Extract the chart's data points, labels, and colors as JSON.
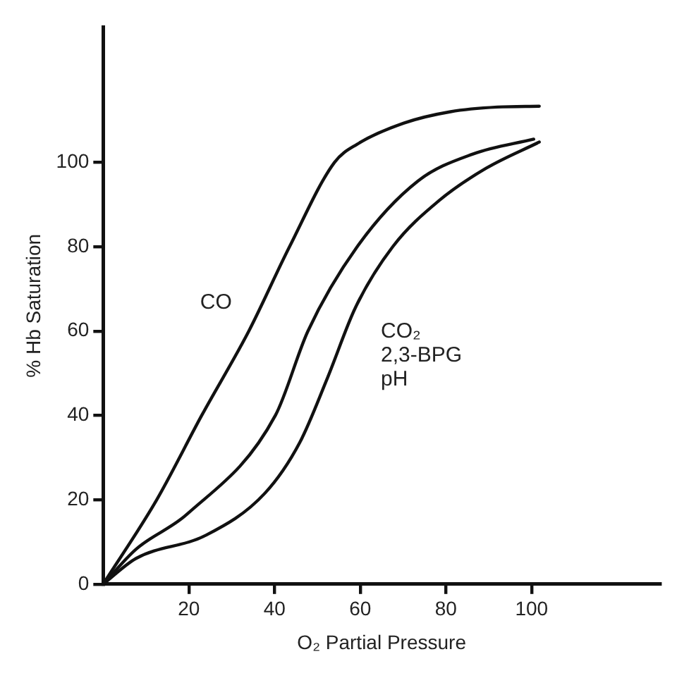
{
  "chart_data": {
    "type": "line",
    "xlabel": "O₂ Partial Pressure",
    "ylabel": "% Hb Saturation",
    "xlim": [
      0,
      130
    ],
    "ylim": [
      0,
      132
    ],
    "xticks": [
      20,
      40,
      60,
      80,
      100
    ],
    "yticks": [
      0,
      20,
      40,
      60,
      80,
      100
    ],
    "grid": false,
    "legend": false,
    "marker": "none",
    "line_style": "solid",
    "series": [
      {
        "name": "CO",
        "color": "#111111",
        "x": [
          0,
          12.5,
          23,
          34,
          43.5,
          54,
          59.3,
          70.2,
          81.1,
          92,
          101.8
        ],
        "values": [
          0,
          20,
          40,
          60,
          80,
          100,
          104.3,
          109.3,
          112,
          113.1,
          113.3
        ]
      },
      {
        "color": "#111111",
        "x": [
          0,
          7.7,
          19.6,
          40.2,
          47.8,
          59.3,
          73.4,
          86.4,
          100.5
        ],
        "values": [
          0,
          8.3,
          16.6,
          40,
          60,
          80,
          95.5,
          102,
          105.5
        ]
      },
      {
        "name": "CO₂\n2,3-BPG\npH",
        "color": "#111111",
        "x": [
          0,
          7.7,
          24,
          37.7,
          45.9,
          52.4,
          58.9,
          67.6,
          78.5,
          89.4,
          101.8
        ],
        "values": [
          0,
          6.1,
          11.6,
          21.5,
          33.6,
          49,
          65.6,
          80,
          91,
          98.6,
          104.8
        ]
      }
    ]
  }
}
